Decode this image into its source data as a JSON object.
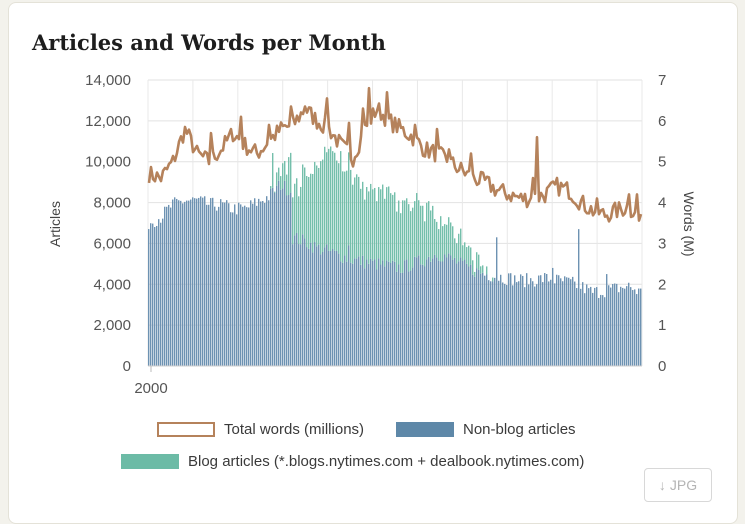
{
  "chart_data": {
    "type": "bar",
    "title": "Articles and Words per Month",
    "ylabel": "Articles",
    "y2label": "Words (M)",
    "ylim": [
      0,
      14000
    ],
    "y2lim": [
      0,
      7
    ],
    "yticks": [
      "0",
      "2,000",
      "4,000",
      "6,000",
      "8,000",
      "10,000",
      "12,000",
      "14,000"
    ],
    "y2ticks": [
      "0",
      "1",
      "2",
      "3",
      "4",
      "5",
      "6",
      "7"
    ],
    "xtick_labels": [
      {
        "year": 2000,
        "label": "2000"
      }
    ],
    "x_start_year": 2000,
    "x_end_year": 2020.5,
    "grid": true,
    "legend_position": "bottom",
    "series": [
      {
        "name": "Total words (millions)",
        "type": "line",
        "axis": "right",
        "color": "#b5825b",
        "anchors": [
          [
            2000.0,
            4.7
          ],
          [
            2000.5,
            4.6
          ],
          [
            2001.0,
            5.0
          ],
          [
            2001.5,
            5.8
          ],
          [
            2002.0,
            5.2
          ],
          [
            2002.5,
            5.0
          ],
          [
            2003.0,
            5.3
          ],
          [
            2003.5,
            5.7
          ],
          [
            2004.0,
            5.4
          ],
          [
            2004.5,
            5.2
          ],
          [
            2005.0,
            5.5
          ],
          [
            2005.5,
            5.8
          ],
          [
            2006.0,
            5.9
          ],
          [
            2006.5,
            6.3
          ],
          [
            2007.0,
            6.0
          ],
          [
            2007.5,
            5.8
          ],
          [
            2008.0,
            5.4
          ],
          [
            2008.5,
            5.1
          ],
          [
            2009.0,
            5.8
          ],
          [
            2009.5,
            6.3
          ],
          [
            2010.0,
            6.0
          ],
          [
            2010.5,
            5.8
          ],
          [
            2011.0,
            5.6
          ],
          [
            2011.5,
            5.3
          ],
          [
            2012.0,
            5.2
          ],
          [
            2012.5,
            5.0
          ],
          [
            2013.0,
            4.8
          ],
          [
            2013.5,
            4.6
          ],
          [
            2014.0,
            4.5
          ],
          [
            2014.5,
            4.3
          ],
          [
            2015.0,
            4.2
          ],
          [
            2015.5,
            4.1
          ],
          [
            2016.0,
            4.1
          ],
          [
            2016.5,
            4.2
          ],
          [
            2017.0,
            4.4
          ],
          [
            2017.5,
            4.3
          ],
          [
            2018.0,
            4.0
          ],
          [
            2018.5,
            3.8
          ],
          [
            2019.0,
            3.7
          ],
          [
            2019.5,
            3.8
          ],
          [
            2020.0,
            3.9
          ],
          [
            2020.5,
            3.5
          ]
        ],
        "spikes": [
          [
            2001.5,
            5.85
          ],
          [
            2002.6,
            5.7
          ],
          [
            2003.8,
            6.1
          ],
          [
            2005.0,
            5.9
          ],
          [
            2005.9,
            6.35
          ],
          [
            2006.5,
            6.35
          ],
          [
            2007.4,
            6.55
          ],
          [
            2008.3,
            5.95
          ],
          [
            2008.95,
            6.3
          ],
          [
            2009.2,
            6.8
          ],
          [
            2009.9,
            6.7
          ],
          [
            2011.1,
            5.9
          ],
          [
            2012.0,
            5.8
          ],
          [
            2012.5,
            5.3
          ],
          [
            2013.4,
            5.2
          ],
          [
            2016.0,
            4.6
          ],
          [
            2016.2,
            5.6
          ],
          [
            2018.7,
            4.1
          ],
          [
            2020.0,
            4.2
          ],
          [
            2020.3,
            4.2
          ]
        ],
        "wiggle": 0.22
      },
      {
        "name": "Non-blog articles",
        "type": "bar",
        "axis": "left",
        "color": "#6d92b2",
        "anchors": [
          [
            2000.0,
            7000
          ],
          [
            2000.5,
            7300
          ],
          [
            2001.0,
            7900
          ],
          [
            2001.5,
            8100
          ],
          [
            2002.0,
            8100
          ],
          [
            2002.5,
            7900
          ],
          [
            2003.0,
            7900
          ],
          [
            2003.5,
            7700
          ],
          [
            2004.0,
            7700
          ],
          [
            2004.5,
            8000
          ],
          [
            2005.0,
            8300
          ],
          [
            2005.5,
            8900
          ],
          [
            2005.99,
            8500
          ],
          [
            2006.0,
            6300
          ],
          [
            2006.5,
            6100
          ],
          [
            2007.0,
            5800
          ],
          [
            2007.5,
            5600
          ],
          [
            2008.0,
            5400
          ],
          [
            2008.5,
            5200
          ],
          [
            2009.0,
            5100
          ],
          [
            2009.5,
            5000
          ],
          [
            2010.0,
            4900
          ],
          [
            2010.5,
            4800
          ],
          [
            2011.0,
            5000
          ],
          [
            2011.5,
            5200
          ],
          [
            2012.0,
            5500
          ],
          [
            2012.5,
            5300
          ],
          [
            2013.0,
            5000
          ],
          [
            2013.5,
            4700
          ],
          [
            2014.0,
            4500
          ],
          [
            2014.5,
            4400
          ],
          [
            2015.0,
            4300
          ],
          [
            2015.5,
            4200
          ],
          [
            2016.0,
            4200
          ],
          [
            2016.5,
            4300
          ],
          [
            2017.0,
            4200
          ],
          [
            2017.5,
            4100
          ],
          [
            2018.0,
            3900
          ],
          [
            2018.5,
            3600
          ],
          [
            2019.0,
            3700
          ],
          [
            2019.5,
            3800
          ],
          [
            2020.0,
            3900
          ],
          [
            2020.5,
            3600
          ]
        ],
        "spikes": [
          [
            2014.5,
            6300
          ],
          [
            2017.9,
            6700
          ],
          [
            2016.8,
            4800
          ],
          [
            2008.3,
            5900
          ],
          [
            2019.1,
            4500
          ]
        ],
        "wiggle": 350
      },
      {
        "name": "Blog articles (*.blogs.nytimes.com + dealbook.nytimes.com)",
        "type": "bar",
        "axis": "left",
        "color": "#74bfab",
        "anchors": [
          [
            2005.0,
            0
          ],
          [
            2005.5,
            600
          ],
          [
            2006.0,
            2200
          ],
          [
            2006.5,
            3200
          ],
          [
            2007.0,
            4000
          ],
          [
            2007.5,
            4800
          ],
          [
            2008.0,
            4600
          ],
          [
            2008.5,
            4200
          ],
          [
            2009.0,
            3700
          ],
          [
            2009.5,
            3400
          ],
          [
            2010.0,
            3300
          ],
          [
            2010.5,
            3300
          ],
          [
            2011.0,
            3100
          ],
          [
            2011.5,
            2600
          ],
          [
            2012.0,
            2000
          ],
          [
            2012.5,
            1500
          ],
          [
            2013.0,
            1200
          ],
          [
            2013.5,
            600
          ],
          [
            2014.0,
            100
          ],
          [
            2014.5,
            0
          ]
        ],
        "spikes": [
          [
            2005.2,
            1700
          ],
          [
            2008.0,
            5400
          ],
          [
            2006.3,
            2800
          ]
        ],
        "wiggle": 400
      }
    ]
  },
  "legend": {
    "words_label": "Total words (millions)",
    "nonblog_label": "Non-blog articles",
    "blog_label": "Blog articles (*.blogs.nytimes.com + dealbook.nytimes.com)"
  },
  "download_button": {
    "icon": "download-arrow-icon",
    "glyph": "↓",
    "label": "JPG"
  },
  "colors": {
    "words": "#b5825b",
    "nonblog": "#6d92b2",
    "blog": "#74bfab"
  }
}
